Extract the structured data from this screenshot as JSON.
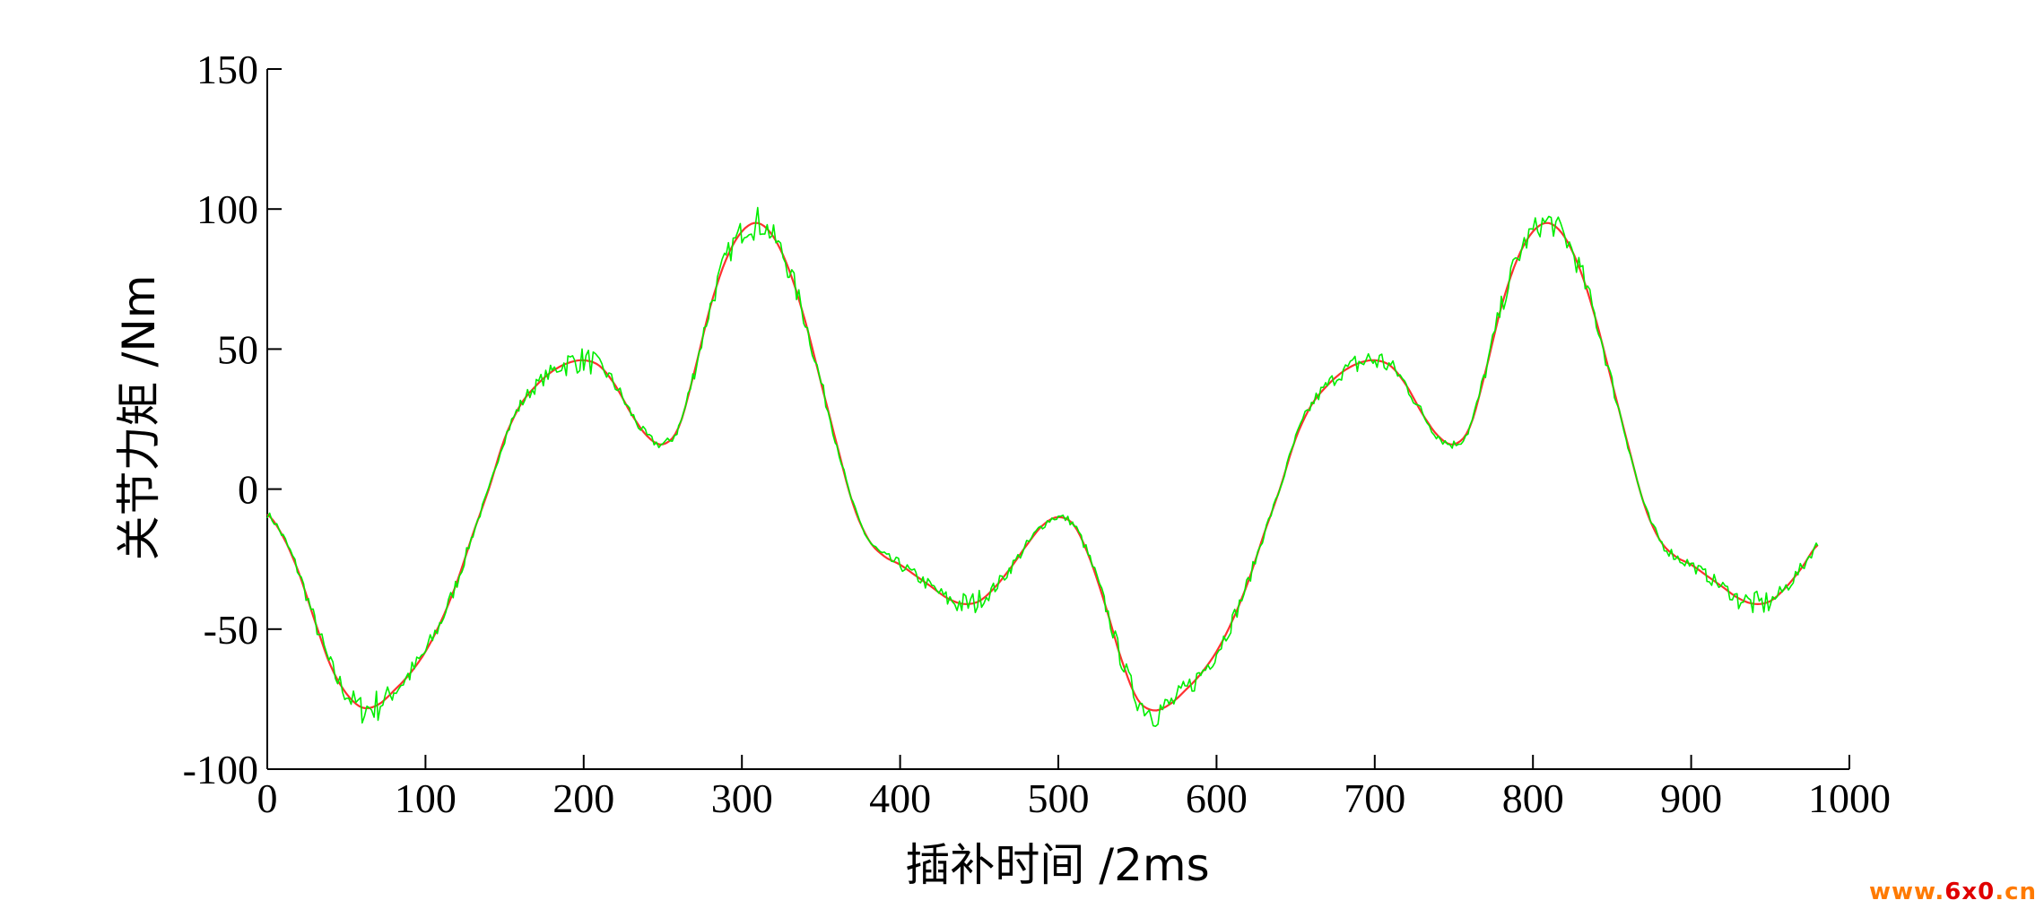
{
  "chart_data": {
    "type": "line",
    "title": "",
    "xlabel": "插补时间 /2ms",
    "ylabel": "关节力矩 /Nm",
    "xlim": [
      0,
      1000
    ],
    "ylim": [
      -100,
      150
    ],
    "xticks": [
      0,
      100,
      200,
      300,
      400,
      500,
      600,
      700,
      800,
      900,
      1000
    ],
    "yticks": [
      -100,
      -50,
      0,
      50,
      100,
      150
    ],
    "grid": false,
    "legend": "none",
    "series": [
      {
        "color": "#ff3030",
        "style": "smooth",
        "x": [
          0,
          10,
          20,
          30,
          40,
          50,
          60,
          70,
          80,
          90,
          100,
          110,
          120,
          130,
          140,
          150,
          160,
          170,
          180,
          190,
          200,
          210,
          220,
          230,
          240,
          250,
          260,
          270,
          280,
          290,
          300,
          310,
          320,
          330,
          340,
          350,
          360,
          370,
          380,
          390,
          400,
          410,
          420,
          430,
          440,
          450,
          460,
          470,
          480,
          490,
          500,
          510,
          520,
          530,
          540,
          550,
          560,
          570,
          580,
          590,
          600,
          610,
          620,
          630,
          640,
          650,
          660,
          670,
          680,
          690,
          700,
          710,
          720,
          730,
          740,
          750,
          760,
          770,
          780,
          790,
          800,
          810,
          820,
          830,
          840,
          850,
          860,
          870,
          880,
          890,
          900,
          910,
          920,
          930,
          940,
          950,
          960,
          970,
          980
        ],
        "y": [
          -9,
          -17,
          -30,
          -47,
          -63,
          -73,
          -78,
          -77,
          -72,
          -66,
          -58,
          -47,
          -33,
          -16,
          0,
          18,
          30,
          37,
          42,
          45,
          46,
          44,
          37,
          27,
          19,
          16,
          22,
          42,
          65,
          82,
          92,
          95,
          90,
          78,
          60,
          38,
          16,
          -5,
          -18,
          -24,
          -27,
          -31,
          -35,
          -39,
          -41,
          -40,
          -35,
          -28,
          -20,
          -13,
          -10,
          -13,
          -25,
          -42,
          -61,
          -75,
          -79,
          -77,
          -72,
          -66,
          -58,
          -47,
          -33,
          -16,
          0,
          18,
          30,
          37,
          42,
          45,
          46,
          44,
          37,
          27,
          19,
          16,
          22,
          42,
          65,
          82,
          92,
          95,
          90,
          78,
          60,
          38,
          16,
          -5,
          -18,
          -24,
          -27,
          -31,
          -35,
          -39,
          -41,
          -40,
          -35,
          -28,
          -20
        ]
      },
      {
        "color": "#00ee00",
        "style": "noisy",
        "x": [
          0,
          10,
          20,
          30,
          40,
          50,
          60,
          70,
          80,
          90,
          100,
          110,
          120,
          130,
          140,
          150,
          160,
          170,
          180,
          190,
          200,
          210,
          220,
          230,
          240,
          250,
          260,
          270,
          280,
          290,
          300,
          310,
          320,
          330,
          340,
          350,
          360,
          370,
          380,
          390,
          400,
          410,
          420,
          430,
          440,
          450,
          460,
          470,
          480,
          490,
          500,
          510,
          520,
          530,
          540,
          550,
          560,
          570,
          580,
          590,
          600,
          610,
          620,
          630,
          640,
          650,
          660,
          670,
          680,
          690,
          700,
          710,
          720,
          730,
          740,
          750,
          760,
          770,
          780,
          790,
          800,
          810,
          820,
          830,
          840,
          850,
          860,
          870,
          880,
          890,
          900,
          910,
          920,
          930,
          940,
          950,
          960,
          970,
          980
        ],
        "y": [
          -9,
          -17,
          -30,
          -47,
          -63,
          -73,
          -78,
          -77,
          -72,
          -66,
          -58,
          -47,
          -33,
          -16,
          0,
          18,
          30,
          37,
          42,
          45,
          46,
          44,
          37,
          27,
          19,
          16,
          22,
          42,
          65,
          82,
          92,
          95,
          90,
          78,
          60,
          38,
          16,
          -5,
          -18,
          -24,
          -27,
          -31,
          -35,
          -39,
          -41,
          -40,
          -35,
          -28,
          -20,
          -13,
          -10,
          -13,
          -25,
          -42,
          -61,
          -75,
          -79,
          -77,
          -72,
          -66,
          -58,
          -47,
          -33,
          -16,
          0,
          18,
          30,
          37,
          42,
          45,
          46,
          44,
          37,
          27,
          19,
          16,
          22,
          42,
          65,
          82,
          92,
          95,
          90,
          78,
          60,
          38,
          16,
          -5,
          -18,
          -24,
          -27,
          -31,
          -35,
          -39,
          -41,
          -40,
          -35,
          -28,
          -20
        ]
      }
    ]
  },
  "watermark": {
    "prefix": "www.",
    "number": "6x0",
    "suffix": ".cn"
  }
}
